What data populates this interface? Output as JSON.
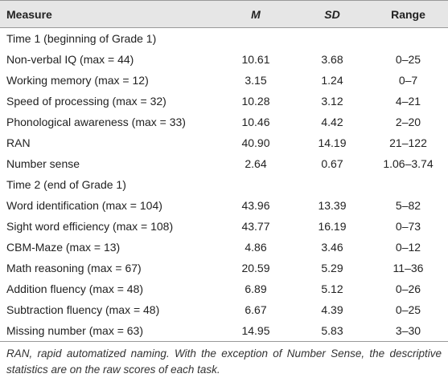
{
  "table": {
    "header": [
      "Measure",
      "M",
      "SD",
      "Range"
    ],
    "sections": [
      {
        "title": "Time 1 (beginning of Grade 1)",
        "rows": [
          [
            "Non-verbal IQ (max = 44)",
            "10.61",
            "3.68",
            "0–25"
          ],
          [
            "Working memory (max = 12)",
            "3.15",
            "1.24",
            "0–7"
          ],
          [
            "Speed of processing (max = 32)",
            "10.28",
            "3.12",
            "4–21"
          ],
          [
            "Phonological awareness (max = 33)",
            "10.46",
            "4.42",
            "2–20"
          ],
          [
            "RAN",
            "40.90",
            "14.19",
            "21–122"
          ],
          [
            "Number sense",
            "2.64",
            "0.67",
            "1.06–3.74"
          ]
        ]
      },
      {
        "title": "Time 2 (end of Grade 1)",
        "rows": [
          [
            "Word identification (max = 104)",
            "43.96",
            "13.39",
            "5–82"
          ],
          [
            "Sight word efficiency (max = 108)",
            "43.77",
            "16.19",
            "0–73"
          ],
          [
            "CBM-Maze (max = 13)",
            "4.86",
            "3.46",
            "0–12"
          ],
          [
            "Math reasoning (max = 67)",
            "20.59",
            "5.29",
            "11–36"
          ],
          [
            "Addition fluency (max = 48)",
            "6.89",
            "5.12",
            "0–26"
          ],
          [
            "Subtraction fluency (max = 48)",
            "6.67",
            "4.39",
            "0–25"
          ],
          [
            "Missing number (max = 63)",
            "14.95",
            "5.83",
            "3–30"
          ]
        ]
      }
    ],
    "footnote": "RAN, rapid automatized naming. With the exception of Number Sense, the descriptive statistics are on the raw scores of each task."
  }
}
